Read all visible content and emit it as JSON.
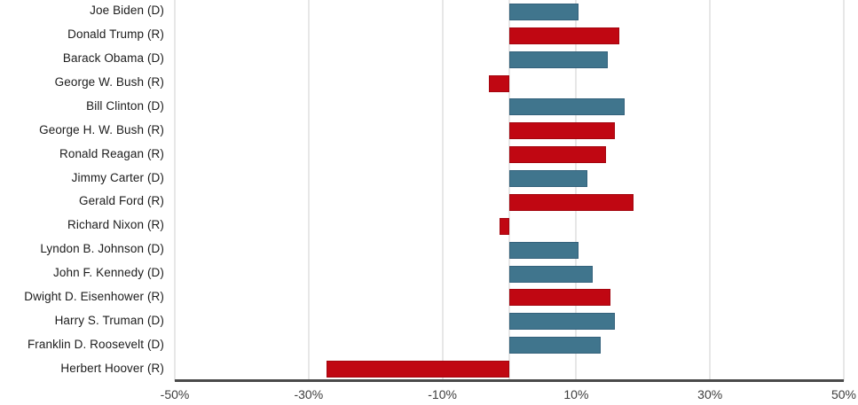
{
  "chart_data": {
    "type": "bar",
    "orientation": "horizontal",
    "title": "",
    "xlabel": "",
    "ylabel": "",
    "xlim": [
      -50,
      50
    ],
    "x_tick_labels": [
      "-50%",
      "-30%",
      "-10%",
      "10%",
      "30%",
      "50%"
    ],
    "x_tick_values": [
      -50,
      -30,
      -10,
      10,
      30,
      50
    ],
    "grid": true,
    "legend_position": "none",
    "categories": [
      "Joe Biden (D)",
      "Donald Trump (R)",
      "Barack Obama (D)",
      "George W. Bush (R)",
      "Bill Clinton (D)",
      "George H. W. Bush (R)",
      "Ronald Reagan (R)",
      "Jimmy Carter (D)",
      "Gerald Ford (R)",
      "Richard Nixon (R)",
      "Lyndon B. Johnson (D)",
      "John F. Kennedy (D)",
      "Dwight D. Eisenhower (R)",
      "Harry S. Truman (D)",
      "Franklin D. Roosevelt (D)",
      "Herbert Hoover (R)"
    ],
    "parties": [
      "D",
      "R",
      "D",
      "R",
      "D",
      "R",
      "R",
      "D",
      "R",
      "R",
      "D",
      "D",
      "R",
      "D",
      "D",
      "R"
    ],
    "values": [
      10.3,
      16.4,
      14.7,
      -3.0,
      17.3,
      15.8,
      14.4,
      11.7,
      18.6,
      -1.5,
      10.4,
      12.5,
      15.1,
      15.8,
      13.6,
      -27.3
    ],
    "unit": "%",
    "colors": {
      "democrat_fill": "#40758D",
      "democrat_border": "#33617B",
      "republican_fill": "#C00712",
      "republican_border": "#A3050E",
      "grid_color": "#e7e7e7",
      "axis_line_color": "#4a4a4a",
      "label_color": "#1c1c1c",
      "tick_label_color": "#3d3d3d"
    }
  }
}
